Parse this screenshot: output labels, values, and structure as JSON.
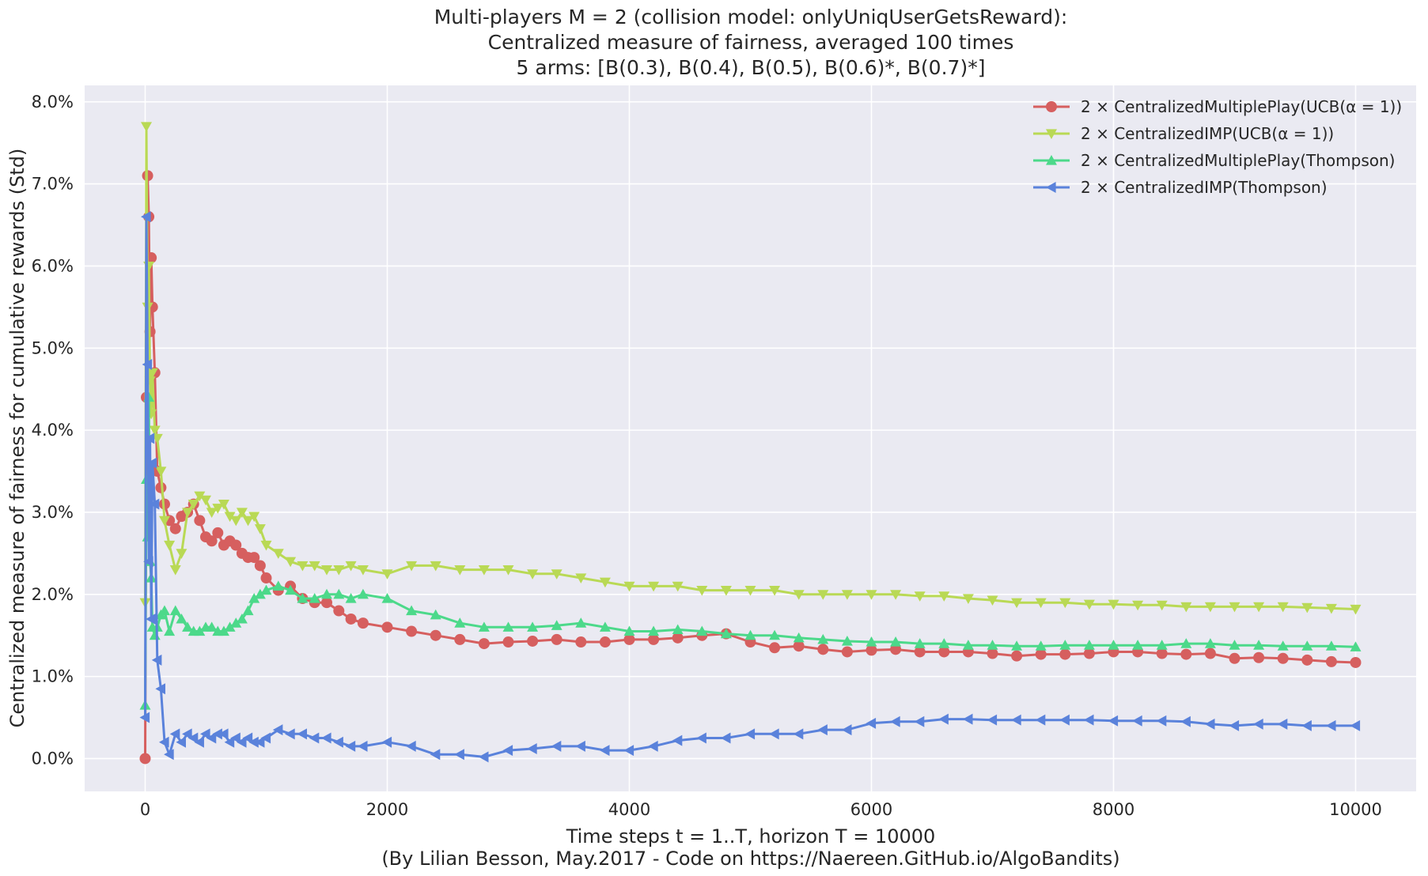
{
  "chart_data": {
    "type": "line",
    "title_lines": [
      "Multi-players M = 2 (collision model: onlyUniqUserGetsReward):",
      "Centralized measure of fairness, averaged 100 times",
      "5 arms: [B(0.3), B(0.4), B(0.5), B(0.6)*, B(0.7)*]"
    ],
    "xlabel": "Time steps t = 1..T, horizon T = 10000",
    "credit": "(By Lilian Besson, May.2017 - Code on https://Naereen.GitHub.io/AlgoBandits)",
    "ylabel": "Centralized measure of fairness for cumulative rewards (Std)",
    "xlim": [
      -500,
      10500
    ],
    "ylim": [
      -0.4,
      8.2
    ],
    "x_ticks": [
      0,
      2000,
      4000,
      6000,
      8000,
      10000
    ],
    "x_tick_labels": [
      "0",
      "2000",
      "4000",
      "6000",
      "8000",
      "10000"
    ],
    "y_ticks": [
      0,
      1,
      2,
      3,
      4,
      5,
      6,
      7,
      8
    ],
    "y_tick_labels": [
      "0.0%",
      "1.0%",
      "2.0%",
      "3.0%",
      "4.0%",
      "5.0%",
      "6.0%",
      "7.0%",
      "8.0%"
    ],
    "grid": true,
    "background": "#eaeaf2",
    "legend_position": "top-right",
    "series": [
      {
        "name": "2 × CentralizedMultiplePlay(UCB(α = 1))",
        "color": "#d65f5f",
        "marker": "circle",
        "x": [
          0,
          10,
          20,
          30,
          40,
          50,
          60,
          80,
          100,
          130,
          160,
          200,
          250,
          300,
          350,
          400,
          450,
          500,
          550,
          600,
          650,
          700,
          750,
          800,
          850,
          900,
          950,
          1000,
          1100,
          1200,
          1300,
          1400,
          1500,
          1600,
          1700,
          1800,
          2000,
          2200,
          2400,
          2600,
          2800,
          3000,
          3200,
          3400,
          3600,
          3800,
          4000,
          4200,
          4400,
          4600,
          4800,
          5000,
          5200,
          5400,
          5600,
          5800,
          6000,
          6200,
          6400,
          6600,
          6800,
          7000,
          7200,
          7400,
          7600,
          7800,
          8000,
          8200,
          8400,
          8600,
          8800,
          9000,
          9200,
          9400,
          9600,
          9800,
          10000
        ],
        "values": [
          0.0,
          4.4,
          7.1,
          6.6,
          5.2,
          6.1,
          5.5,
          4.7,
          3.5,
          3.3,
          3.1,
          2.9,
          2.8,
          2.95,
          3.0,
          3.1,
          2.9,
          2.7,
          2.65,
          2.75,
          2.6,
          2.65,
          2.6,
          2.5,
          2.45,
          2.45,
          2.35,
          2.2,
          2.05,
          2.1,
          1.95,
          1.9,
          1.9,
          1.8,
          1.7,
          1.65,
          1.6,
          1.55,
          1.5,
          1.45,
          1.4,
          1.42,
          1.43,
          1.45,
          1.42,
          1.42,
          1.45,
          1.45,
          1.47,
          1.5,
          1.52,
          1.42,
          1.35,
          1.37,
          1.33,
          1.3,
          1.32,
          1.33,
          1.3,
          1.3,
          1.3,
          1.28,
          1.25,
          1.27,
          1.27,
          1.28,
          1.3,
          1.3,
          1.28,
          1.27,
          1.28,
          1.22,
          1.23,
          1.22,
          1.2,
          1.18,
          1.17
        ]
      },
      {
        "name": "2 × CentralizedIMP(UCB(α = 1))",
        "color": "#b9d955",
        "marker": "triangle-down",
        "x": [
          0,
          10,
          20,
          30,
          40,
          50,
          60,
          80,
          100,
          130,
          160,
          200,
          250,
          300,
          350,
          400,
          450,
          500,
          550,
          600,
          650,
          700,
          750,
          800,
          850,
          900,
          950,
          1000,
          1100,
          1200,
          1300,
          1400,
          1500,
          1600,
          1700,
          1800,
          2000,
          2200,
          2400,
          2600,
          2800,
          3000,
          3200,
          3400,
          3600,
          3800,
          4000,
          4200,
          4400,
          4600,
          4800,
          5000,
          5200,
          5400,
          5600,
          5800,
          6000,
          6200,
          6400,
          6600,
          6800,
          7000,
          7200,
          7400,
          7600,
          7800,
          8000,
          8200,
          8400,
          8600,
          8800,
          9000,
          9200,
          9400,
          9600,
          9800,
          10000
        ],
        "values": [
          1.9,
          7.7,
          5.5,
          6.0,
          4.6,
          4.2,
          4.7,
          4.0,
          3.9,
          3.5,
          2.9,
          2.6,
          2.3,
          2.5,
          3.0,
          3.1,
          3.2,
          3.15,
          3.0,
          3.05,
          3.1,
          2.95,
          2.9,
          3.0,
          2.9,
          2.95,
          2.8,
          2.6,
          2.5,
          2.4,
          2.35,
          2.35,
          2.3,
          2.3,
          2.35,
          2.3,
          2.25,
          2.35,
          2.35,
          2.3,
          2.3,
          2.3,
          2.25,
          2.25,
          2.2,
          2.15,
          2.1,
          2.1,
          2.1,
          2.05,
          2.05,
          2.05,
          2.05,
          2.0,
          2.0,
          2.0,
          2.0,
          2.0,
          1.98,
          1.98,
          1.95,
          1.93,
          1.9,
          1.9,
          1.9,
          1.88,
          1.88,
          1.87,
          1.87,
          1.85,
          1.85,
          1.85,
          1.85,
          1.85,
          1.84,
          1.83,
          1.82
        ]
      },
      {
        "name": "2 × CentralizedMultiplePlay(Thompson)",
        "color": "#4cd98a",
        "marker": "triangle-up",
        "x": [
          0,
          10,
          20,
          30,
          40,
          50,
          60,
          80,
          100,
          130,
          160,
          200,
          250,
          300,
          350,
          400,
          450,
          500,
          550,
          600,
          650,
          700,
          750,
          800,
          850,
          900,
          950,
          1000,
          1100,
          1200,
          1300,
          1400,
          1500,
          1600,
          1700,
          1800,
          2000,
          2200,
          2400,
          2600,
          2800,
          3000,
          3200,
          3400,
          3600,
          3800,
          4000,
          4200,
          4400,
          4600,
          4800,
          5000,
          5200,
          5400,
          5600,
          5800,
          6000,
          6200,
          6400,
          6600,
          6800,
          7000,
          7200,
          7400,
          7600,
          7800,
          8000,
          8200,
          8400,
          8600,
          8800,
          9000,
          9200,
          9400,
          9600,
          9800,
          10000
        ],
        "values": [
          0.65,
          3.4,
          2.7,
          4.4,
          2.4,
          2.2,
          1.6,
          1.5,
          1.6,
          1.75,
          1.8,
          1.55,
          1.8,
          1.7,
          1.6,
          1.55,
          1.55,
          1.6,
          1.6,
          1.55,
          1.55,
          1.6,
          1.65,
          1.7,
          1.8,
          1.95,
          2.0,
          2.05,
          2.1,
          2.05,
          1.95,
          1.95,
          2.0,
          2.0,
          1.95,
          2.0,
          1.95,
          1.8,
          1.75,
          1.65,
          1.6,
          1.6,
          1.6,
          1.62,
          1.65,
          1.6,
          1.55,
          1.55,
          1.57,
          1.55,
          1.52,
          1.5,
          1.5,
          1.47,
          1.45,
          1.43,
          1.42,
          1.42,
          1.4,
          1.4,
          1.38,
          1.38,
          1.37,
          1.37,
          1.38,
          1.38,
          1.38,
          1.38,
          1.38,
          1.4,
          1.4,
          1.38,
          1.38,
          1.37,
          1.37,
          1.37,
          1.36
        ]
      },
      {
        "name": "2 × CentralizedIMP(Thompson)",
        "color": "#5a82db",
        "marker": "triangle-left",
        "x": [
          0,
          10,
          20,
          30,
          40,
          50,
          60,
          80,
          100,
          130,
          160,
          200,
          250,
          300,
          350,
          400,
          450,
          500,
          550,
          600,
          650,
          700,
          750,
          800,
          850,
          900,
          950,
          1000,
          1100,
          1200,
          1300,
          1400,
          1500,
          1600,
          1700,
          1800,
          2000,
          2200,
          2400,
          2600,
          2800,
          3000,
          3200,
          3400,
          3600,
          3800,
          4000,
          4200,
          4400,
          4600,
          4800,
          5000,
          5200,
          5400,
          5600,
          5800,
          6000,
          6200,
          6400,
          6600,
          6800,
          7000,
          7200,
          7400,
          7600,
          7800,
          8000,
          8200,
          8400,
          8600,
          8800,
          9000,
          9200,
          9400,
          9600,
          9800,
          10000
        ],
        "values": [
          0.5,
          6.6,
          4.8,
          2.4,
          3.9,
          1.7,
          3.6,
          3.1,
          1.2,
          0.85,
          0.2,
          0.05,
          0.3,
          0.2,
          0.3,
          0.25,
          0.2,
          0.3,
          0.25,
          0.3,
          0.3,
          0.2,
          0.25,
          0.2,
          0.25,
          0.2,
          0.2,
          0.25,
          0.35,
          0.3,
          0.3,
          0.25,
          0.25,
          0.2,
          0.15,
          0.15,
          0.2,
          0.15,
          0.05,
          0.05,
          0.02,
          0.1,
          0.12,
          0.15,
          0.15,
          0.1,
          0.1,
          0.15,
          0.22,
          0.25,
          0.25,
          0.3,
          0.3,
          0.3,
          0.35,
          0.35,
          0.43,
          0.45,
          0.45,
          0.48,
          0.48,
          0.47,
          0.47,
          0.47,
          0.47,
          0.47,
          0.46,
          0.46,
          0.46,
          0.45,
          0.42,
          0.4,
          0.42,
          0.42,
          0.4,
          0.4,
          0.4
        ]
      }
    ]
  }
}
